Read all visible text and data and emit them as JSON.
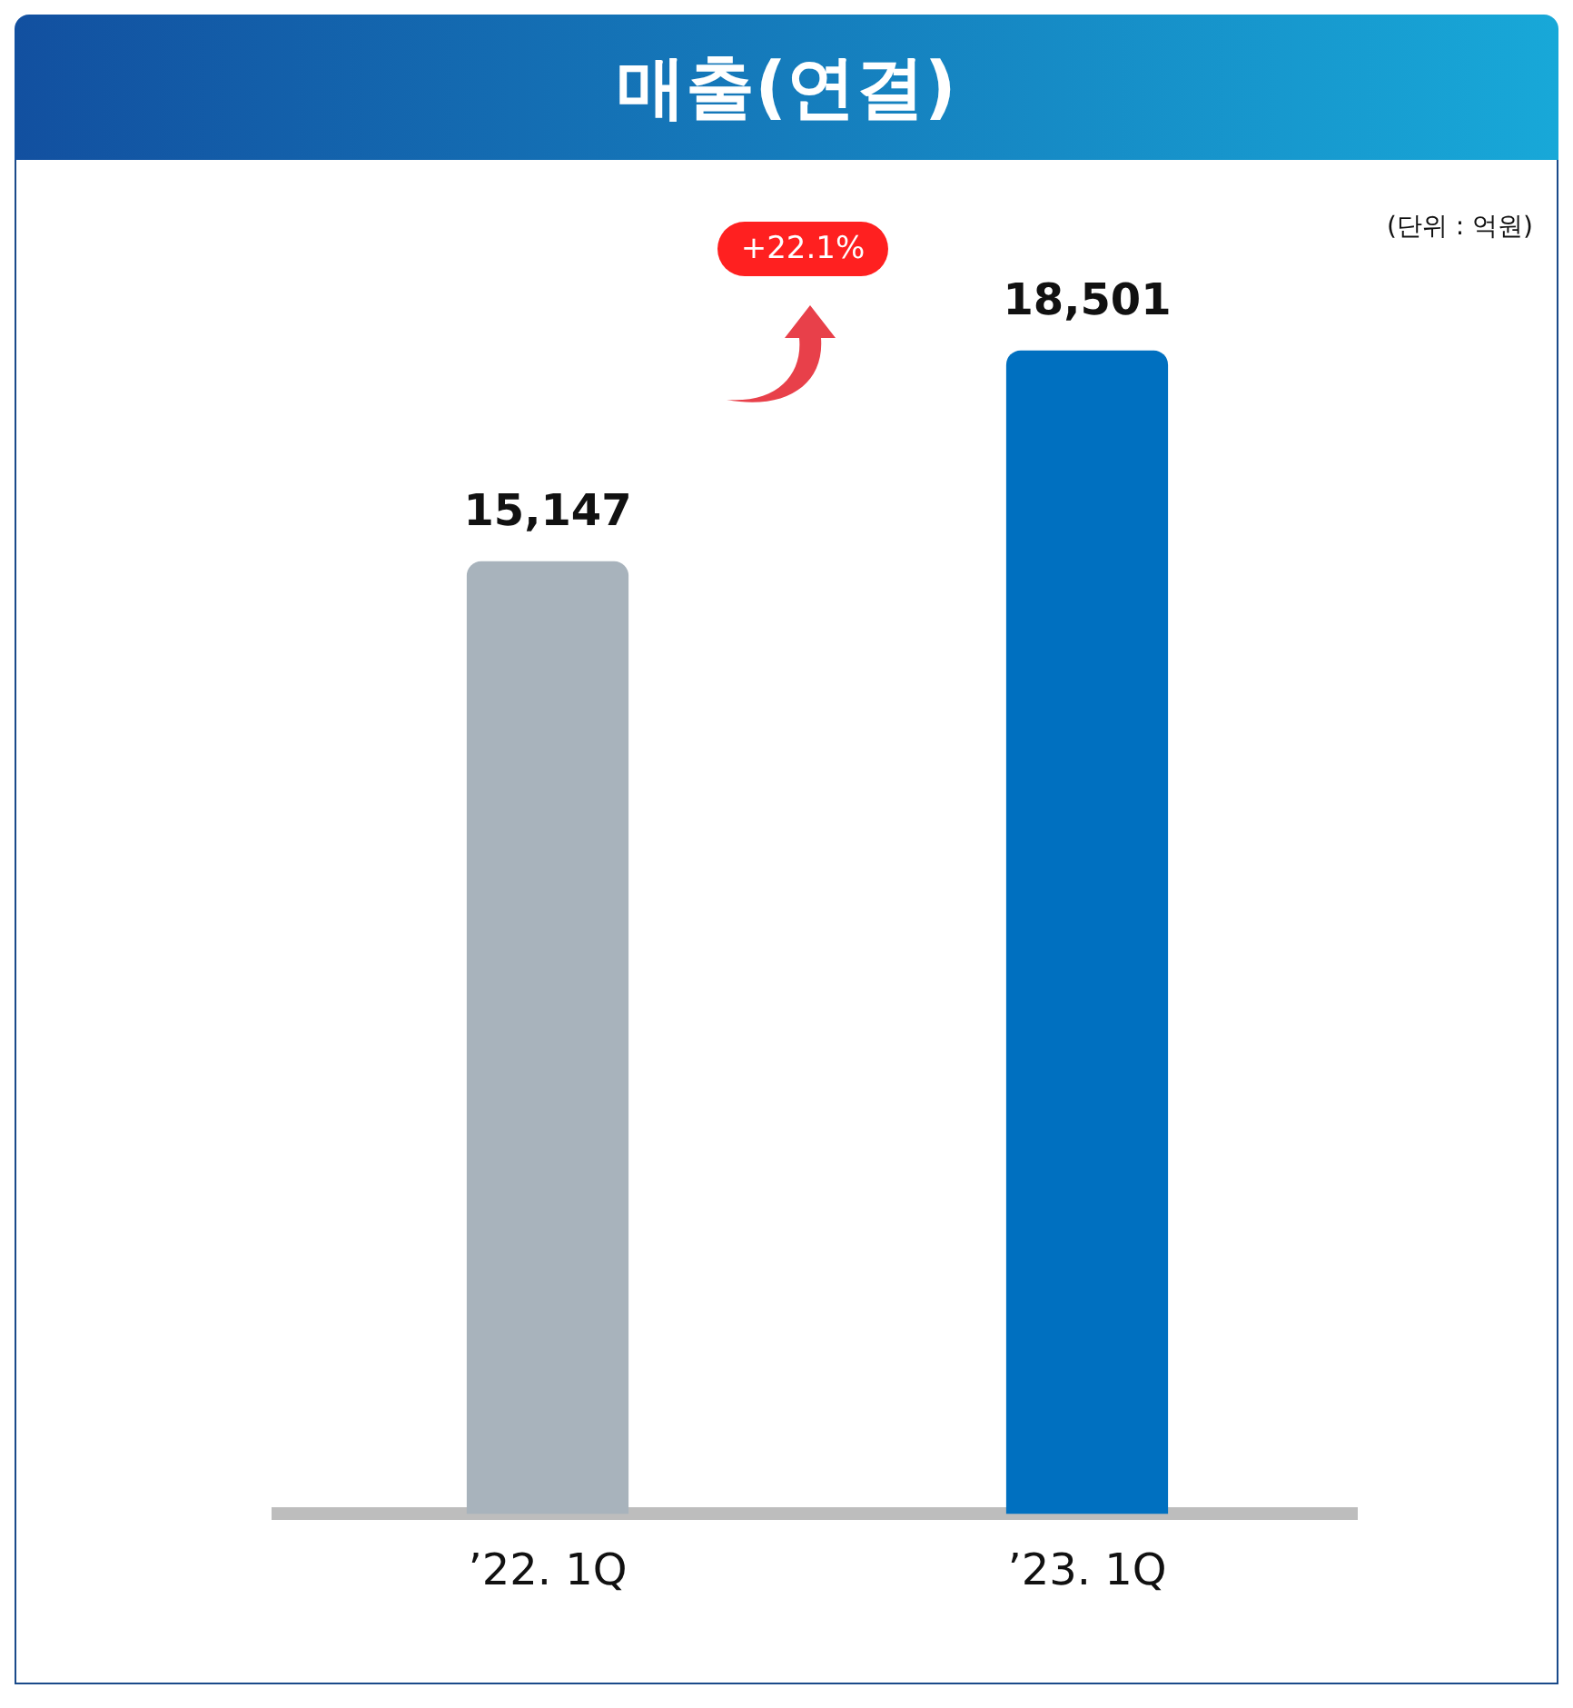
{
  "chart_data": {
    "type": "bar",
    "title": "매출(연결)",
    "subtitle": "(단위 : 억원)",
    "categories": [
      "’22. 1Q",
      "’23. 1Q"
    ],
    "values": [
      15147,
      18501
    ],
    "value_labels": [
      "15,147",
      "18,501"
    ],
    "colors": [
      "#a8b3bc",
      "#0070c0"
    ],
    "annotations": [
      "+22.1%"
    ],
    "relative": false,
    "grid": false,
    "legend": false
  }
}
